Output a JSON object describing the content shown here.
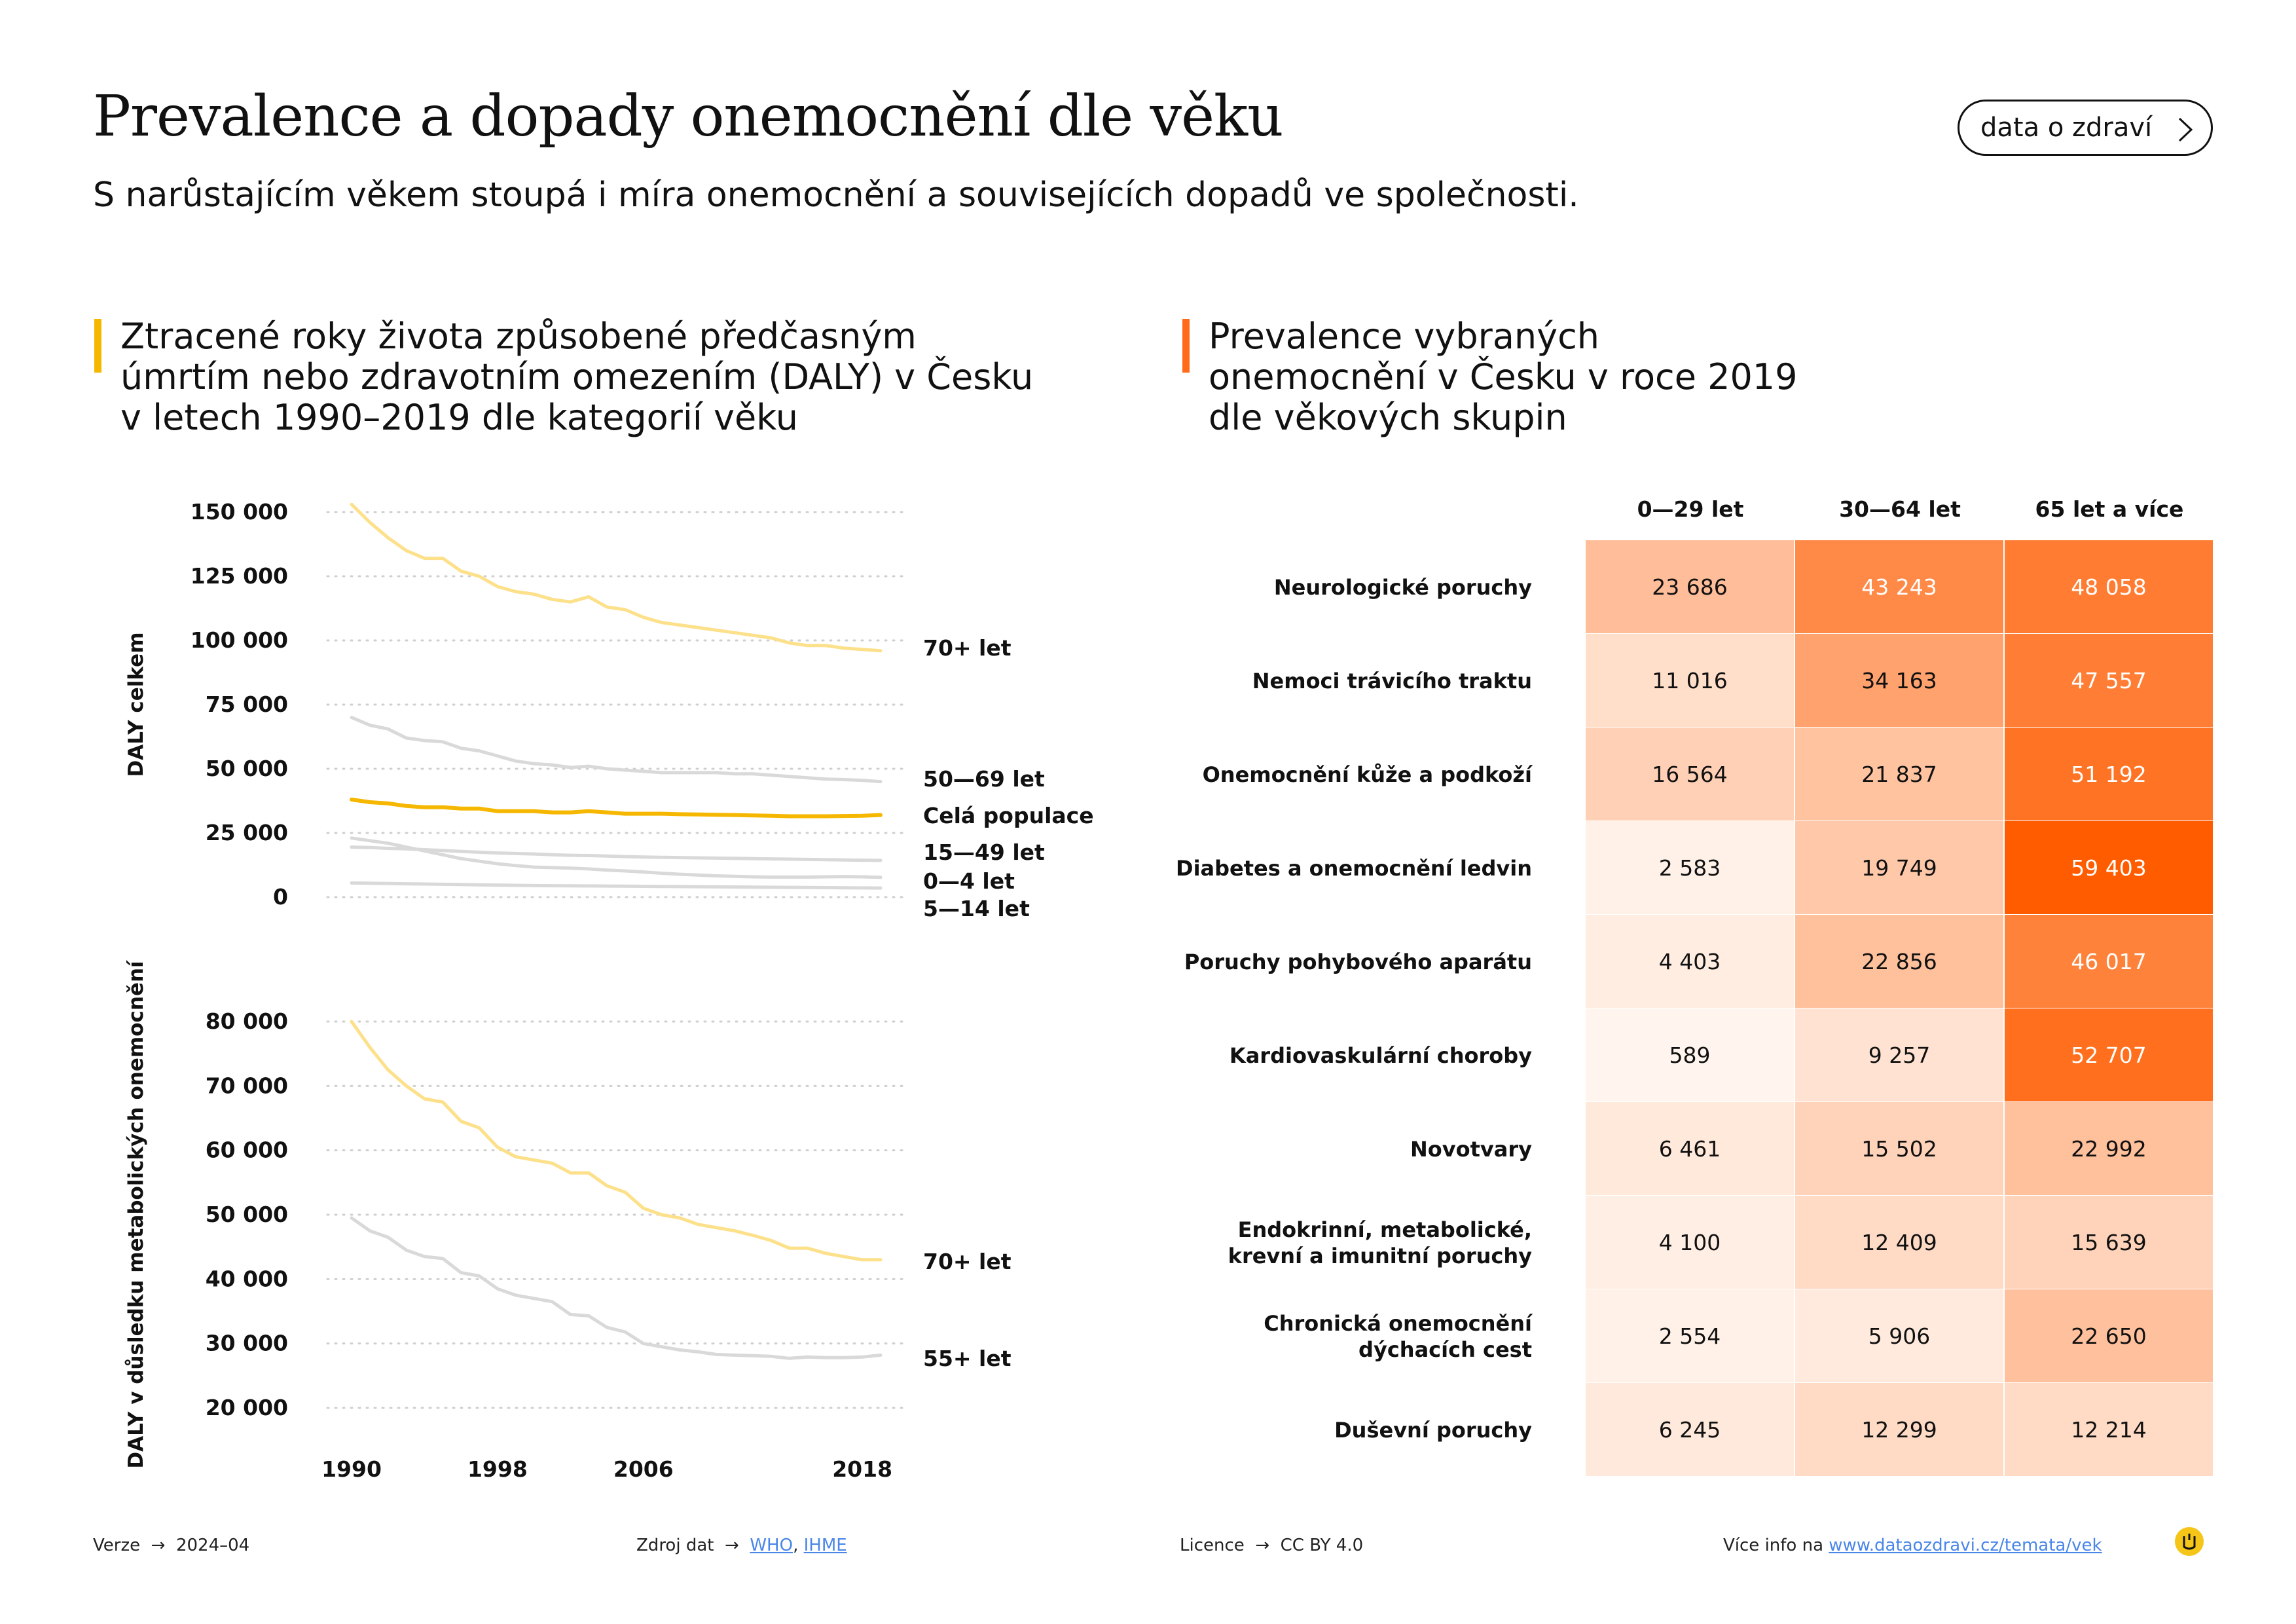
{
  "header": {
    "title": "Prevalence a dopady onemocnění dle věku",
    "subtitle": "S narůstajícím věkem stoupá i míra onemocnění a souvisejících dopadů ve společnosti.",
    "link_label": "data o zdraví"
  },
  "left_section": {
    "heading": "Ztracené roky života způsobené předčasným úmrtím nebo zdravotním omezením (DALY) v Česku v letech 1990–2019 dle kategorií věku",
    "accent_color": "#f5b700"
  },
  "right_section": {
    "heading": "Prevalence vybraných onemocnění v Česku v roce 2019 dle věkových skupin",
    "accent_color": "#ff6b1a"
  },
  "chart_data": [
    {
      "type": "line",
      "ylabel": "DALY celkem",
      "ylim": [
        0,
        150000
      ],
      "yticks": [
        0,
        25000,
        50000,
        75000,
        100000,
        125000,
        150000
      ],
      "ytick_labels": [
        "0",
        "25 000",
        "50 000",
        "75 000",
        "100 000",
        "125 000",
        "150 000"
      ],
      "x": [
        1990,
        1991,
        1992,
        1993,
        1994,
        1995,
        1996,
        1997,
        1998,
        1999,
        2000,
        2001,
        2002,
        2003,
        2004,
        2005,
        2006,
        2007,
        2008,
        2009,
        2010,
        2011,
        2012,
        2013,
        2014,
        2015,
        2016,
        2017,
        2018,
        2019
      ],
      "grid": true,
      "series": [
        {
          "name": "70+ let",
          "color": "#fde08a",
          "width": 5,
          "values": [
            153000,
            146000,
            140000,
            135000,
            132000,
            132000,
            127000,
            125000,
            121000,
            119000,
            118000,
            116000,
            115000,
            117000,
            113000,
            112000,
            109000,
            107000,
            106000,
            105000,
            104000,
            103000,
            102000,
            101000,
            99000,
            98000,
            98000,
            97000,
            96500,
            96000
          ]
        },
        {
          "name": "50—69 let",
          "color": "#d9d9d9",
          "width": 5,
          "values": [
            70000,
            67000,
            65500,
            62000,
            61000,
            60500,
            58000,
            57000,
            55000,
            53000,
            52000,
            51500,
            50500,
            51000,
            50000,
            49500,
            49000,
            48500,
            48500,
            48500,
            48500,
            48000,
            48000,
            47500,
            47000,
            46500,
            46000,
            45800,
            45500,
            45000
          ]
        },
        {
          "name": "Celá populace",
          "color": "#f5b700",
          "width": 6,
          "values": [
            38000,
            37000,
            36500,
            35500,
            35000,
            35000,
            34500,
            34500,
            33500,
            33500,
            33500,
            33000,
            33000,
            33500,
            33000,
            32500,
            32500,
            32500,
            32300,
            32200,
            32100,
            32000,
            31800,
            31700,
            31500,
            31500,
            31500,
            31600,
            31700,
            32000
          ]
        },
        {
          "name": "15—49 let",
          "color": "#d9d9d9",
          "width": 5,
          "values": [
            19500,
            19300,
            19000,
            18800,
            18500,
            18200,
            17800,
            17500,
            17200,
            17000,
            16800,
            16500,
            16300,
            16200,
            16000,
            15800,
            15600,
            15500,
            15400,
            15300,
            15200,
            15100,
            15000,
            14900,
            14800,
            14700,
            14600,
            14500,
            14400,
            14300
          ]
        },
        {
          "name": "0—4 let",
          "color": "#d9d9d9",
          "width": 5,
          "values": [
            23000,
            22000,
            21000,
            19500,
            18000,
            16500,
            15000,
            14000,
            13000,
            12300,
            11700,
            11500,
            11300,
            11000,
            10500,
            10200,
            9800,
            9300,
            8900,
            8600,
            8300,
            8100,
            7900,
            7800,
            7800,
            7800,
            7900,
            8000,
            7900,
            7700
          ]
        },
        {
          "name": "5—14 let",
          "color": "#d9d9d9",
          "width": 5,
          "values": [
            5500,
            5400,
            5300,
            5200,
            5100,
            5000,
            4900,
            4800,
            4700,
            4600,
            4500,
            4450,
            4400,
            4350,
            4300,
            4250,
            4200,
            4150,
            4100,
            4050,
            4000,
            3950,
            3900,
            3850,
            3800,
            3750,
            3700,
            3650,
            3600,
            3550
          ]
        }
      ]
    },
    {
      "type": "line",
      "ylabel": "DALY v důsledku metabolických onemocnění",
      "ylim": [
        20000,
        80000
      ],
      "yticks": [
        20000,
        30000,
        40000,
        50000,
        60000,
        70000,
        80000
      ],
      "ytick_labels": [
        "20 000",
        "30 000",
        "40 000",
        "50 000",
        "60 000",
        "70 000",
        "80 000"
      ],
      "x": [
        1990,
        1991,
        1992,
        1993,
        1994,
        1995,
        1996,
        1997,
        1998,
        1999,
        2000,
        2001,
        2002,
        2003,
        2004,
        2005,
        2006,
        2007,
        2008,
        2009,
        2010,
        2011,
        2012,
        2013,
        2014,
        2015,
        2016,
        2017,
        2018,
        2019
      ],
      "xticks": [
        1990,
        1998,
        2006,
        2018
      ],
      "grid": true,
      "series": [
        {
          "name": "70+ let",
          "color": "#fde08a",
          "width": 5,
          "values": [
            80000,
            76000,
            72500,
            70000,
            68000,
            67500,
            64500,
            63500,
            60500,
            59000,
            58500,
            58000,
            56500,
            56500,
            54500,
            53500,
            51000,
            50000,
            49500,
            48500,
            48000,
            47500,
            46800,
            46000,
            44800,
            44800,
            44000,
            43500,
            43000,
            43000
          ]
        },
        {
          "name": "55+ let",
          "color": "#d9d9d9",
          "width": 5,
          "values": [
            49500,
            47500,
            46500,
            44500,
            43500,
            43200,
            41000,
            40500,
            38500,
            37500,
            37000,
            36500,
            34500,
            34300,
            32500,
            31800,
            30000,
            29500,
            29000,
            28700,
            28300,
            28200,
            28100,
            28000,
            27700,
            27900,
            27800,
            27800,
            27900,
            28200
          ]
        }
      ]
    },
    {
      "type": "heatmap",
      "columns": [
        "0—29 let",
        "30—64 let",
        "65 let a více"
      ],
      "rows": [
        "Neurologické poruchy",
        "Nemoci trávicího traktu",
        "Onemocnění kůže a podkoží",
        "Diabetes a onemocnění ledvin",
        "Poruchy pohybového aparátu",
        "Kardiovaskulární choroby",
        "Novotvary",
        "Endokrinní, metabolické,\nkrevní a imunitní poruchy",
        "Chronická onemocnění\ndýchacích cest",
        "Duševní poruchy"
      ],
      "values": [
        [
          23686,
          43243,
          48058
        ],
        [
          11016,
          34163,
          47557
        ],
        [
          16564,
          21837,
          51192
        ],
        [
          2583,
          19749,
          59403
        ],
        [
          4403,
          22856,
          46017
        ],
        [
          589,
          9257,
          52707
        ],
        [
          6461,
          15502,
          22992
        ],
        [
          4100,
          12409,
          15639
        ],
        [
          2554,
          5906,
          22650
        ],
        [
          6245,
          12299,
          12214
        ]
      ],
      "display": [
        [
          "23 686",
          "43 243",
          "48 058"
        ],
        [
          "11 016",
          "34 163",
          "47 557"
        ],
        [
          "16 564",
          "21 837",
          "51 192"
        ],
        [
          "2 583",
          "19 749",
          "59 403"
        ],
        [
          "4 403",
          "22 856",
          "46 017"
        ],
        [
          "589",
          "9 257",
          "52 707"
        ],
        [
          "6 461",
          "15 502",
          "22 992"
        ],
        [
          "4 100",
          "12 409",
          "15 639"
        ],
        [
          "2 554",
          "5 906",
          "22 650"
        ],
        [
          "6 245",
          "12 299",
          "12 214"
        ]
      ],
      "color_scale": [
        "#fff6f0",
        "#ff5c00"
      ]
    }
  ],
  "footer": {
    "version_label": "Verze",
    "version_value": "2024–04",
    "source_label": "Zdroj dat",
    "source_who": "WHO",
    "source_ihme": "IHME",
    "license_label": "Licence",
    "license_value": "CC BY 4.0",
    "more_label": "Více info na",
    "more_link": "www.dataozdravi.cz/temata/vek",
    "arrow": "→"
  }
}
